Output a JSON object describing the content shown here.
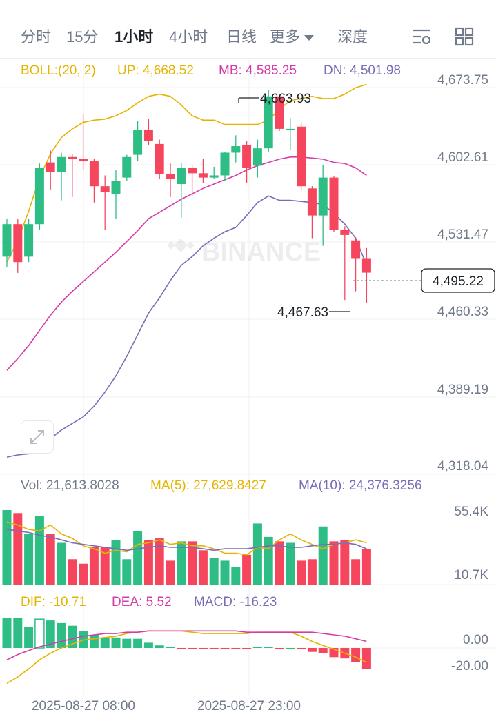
{
  "tabs": {
    "items": [
      {
        "label": "分时",
        "active": false
      },
      {
        "label": "15分",
        "active": false
      },
      {
        "label": "1小时",
        "active": true
      },
      {
        "label": "4小时",
        "active": false
      },
      {
        "label": "日线",
        "active": false
      },
      {
        "label": "更多",
        "active": false
      },
      {
        "label": "深度",
        "active": false
      }
    ]
  },
  "boll": {
    "label": "BOLL:(20, 2)",
    "up": "UP: 4,668.52",
    "mb": "MB: 4,585.25",
    "dn": "DN: 4,501.98"
  },
  "price_axis": [
    "4,673.75",
    "4,602.61",
    "4,531.47",
    "4,460.33",
    "4,389.19",
    "4,318.04"
  ],
  "current_price": "4,495.22",
  "high_marker": "4,663.93",
  "low_marker": "4,467.63",
  "watermark": "BINANCE",
  "volume": {
    "vol": "Vol: 21,613.8028",
    "ma5": "MA(5): 27,629.8427",
    "ma10": "MA(10): 24,376.3256",
    "axis": [
      "55.4K",
      "10.7K"
    ]
  },
  "macd": {
    "dif": "DIF: -10.71",
    "dea": "DEA: 5.52",
    "macd": "MACD: -16.23",
    "axis": [
      "0.00",
      "-20.00"
    ]
  },
  "time_axis": [
    "2025-08-27 08:00",
    "2025-08-27 23:00"
  ],
  "colors": {
    "up": "#2ebd85",
    "down": "#f6465d",
    "boll_up": "#e5b400",
    "boll_mb": "#d63ca8",
    "boll_dn": "#7b6bb8",
    "ma5": "#e5b400",
    "ma10": "#7b6bb8"
  },
  "chart_data": {
    "type": "candlestick",
    "price_range": [
      4318.04,
      4673.75
    ],
    "candles": [
      {
        "o": 4510,
        "h": 4545,
        "l": 4500,
        "c": 4540
      },
      {
        "o": 4540,
        "h": 4545,
        "l": 4495,
        "c": 4505
      },
      {
        "o": 4510,
        "h": 4545,
        "l": 4505,
        "c": 4540
      },
      {
        "o": 4540,
        "h": 4596,
        "l": 4535,
        "c": 4592
      },
      {
        "o": 4597,
        "h": 4608,
        "l": 4572,
        "c": 4588
      },
      {
        "o": 4588,
        "h": 4606,
        "l": 4562,
        "c": 4602
      },
      {
        "o": 4602,
        "h": 4605,
        "l": 4565,
        "c": 4600
      },
      {
        "o": 4600,
        "h": 4642,
        "l": 4590,
        "c": 4598
      },
      {
        "o": 4598,
        "h": 4600,
        "l": 4560,
        "c": 4575
      },
      {
        "o": 4575,
        "h": 4585,
        "l": 4535,
        "c": 4570
      },
      {
        "o": 4568,
        "h": 4590,
        "l": 4545,
        "c": 4580
      },
      {
        "o": 4583,
        "h": 4604,
        "l": 4580,
        "c": 4602
      },
      {
        "o": 4604,
        "h": 4635,
        "l": 4598,
        "c": 4627
      },
      {
        "o": 4627,
        "h": 4637,
        "l": 4613,
        "c": 4617
      },
      {
        "o": 4614,
        "h": 4618,
        "l": 4582,
        "c": 4586
      },
      {
        "o": 4586,
        "h": 4596,
        "l": 4565,
        "c": 4582
      },
      {
        "o": 4577,
        "h": 4597,
        "l": 4546,
        "c": 4592
      },
      {
        "o": 4592,
        "h": 4594,
        "l": 4566,
        "c": 4587
      },
      {
        "o": 4587,
        "h": 4600,
        "l": 4578,
        "c": 4583
      },
      {
        "o": 4583,
        "h": 4593,
        "l": 4582,
        "c": 4585
      },
      {
        "o": 4585,
        "h": 4607,
        "l": 4580,
        "c": 4606
      },
      {
        "o": 4606,
        "h": 4622,
        "l": 4597,
        "c": 4612
      },
      {
        "o": 4613,
        "h": 4617,
        "l": 4578,
        "c": 4592
      },
      {
        "o": 4594,
        "h": 4618,
        "l": 4583,
        "c": 4610
      },
      {
        "o": 4610,
        "h": 4664,
        "l": 4607,
        "c": 4658
      },
      {
        "o": 4658,
        "h": 4660,
        "l": 4626,
        "c": 4628
      },
      {
        "o": 4627,
        "h": 4638,
        "l": 4608,
        "c": 4628
      },
      {
        "o": 4630,
        "h": 4634,
        "l": 4571,
        "c": 4575
      },
      {
        "o": 4573,
        "h": 4575,
        "l": 4527,
        "c": 4548
      },
      {
        "o": 4548,
        "h": 4595,
        "l": 4520,
        "c": 4583
      },
      {
        "o": 4583,
        "h": 4584,
        "l": 4533,
        "c": 4535
      },
      {
        "o": 4535,
        "h": 4538,
        "l": 4470,
        "c": 4530
      },
      {
        "o": 4525,
        "h": 4528,
        "l": 4478,
        "c": 4508
      },
      {
        "o": 4508,
        "h": 4518,
        "l": 4467.63,
        "c": 4495.22
      }
    ],
    "boll_up": [
      4505,
      4525,
      4552,
      4583,
      4605,
      4620,
      4628,
      4634,
      4636,
      4637,
      4640,
      4645,
      4652,
      4658,
      4660,
      4658,
      4650,
      4640,
      4636,
      4636,
      4632,
      4632,
      4632,
      4632,
      4636,
      4646,
      4654,
      4656,
      4658,
      4656,
      4656,
      4660,
      4666,
      4669
    ],
    "boll_mb": [
      4405,
      4416,
      4428,
      4442,
      4456,
      4468,
      4478,
      4487,
      4496,
      4505,
      4514,
      4524,
      4534,
      4545,
      4551,
      4557,
      4563,
      4568,
      4573,
      4577,
      4581,
      4585,
      4590,
      4594,
      4597,
      4600,
      4602,
      4602,
      4601,
      4600,
      4597,
      4596,
      4592,
      4585
    ],
    "boll_dn": [
      4325,
      4327,
      4328,
      4329,
      4342,
      4350,
      4356,
      4362,
      4372,
      4385,
      4400,
      4418,
      4438,
      4458,
      4472,
      4488,
      4502,
      4510,
      4520,
      4527,
      4533,
      4537,
      4548,
      4560,
      4566,
      4562,
      4562,
      4561,
      4560,
      4558,
      4550,
      4540,
      4527,
      4502
    ],
    "volume": [
      50,
      48,
      34,
      46,
      34,
      28,
      17,
      14,
      25,
      25,
      30,
      17,
      36,
      30,
      31,
      16,
      29,
      29,
      23,
      18,
      16,
      12,
      20,
      41,
      32,
      29,
      28,
      16,
      17,
      39,
      29,
      30,
      17,
      24
    ],
    "vol_ma5": [
      42,
      40,
      37,
      36,
      40,
      34,
      31,
      26,
      24,
      21,
      23,
      22,
      27,
      28,
      30,
      27,
      28,
      26,
      26,
      24,
      21,
      21,
      20,
      25,
      24,
      30,
      34,
      30,
      27,
      24,
      27,
      28,
      30,
      28
    ],
    "vol_ma10": [
      37,
      36,
      35,
      33,
      32,
      30,
      28,
      27,
      26,
      25,
      24,
      23,
      24,
      25,
      26,
      25,
      25,
      25,
      24,
      23,
      24,
      24,
      24,
      25,
      26,
      26,
      25,
      25,
      26,
      27,
      27,
      28,
      27,
      24
    ],
    "macd_hist": [
      23,
      23,
      16,
      22,
      21,
      19,
      17,
      13,
      10,
      8,
      8,
      7,
      7,
      4,
      2,
      1,
      -1,
      -1,
      -1,
      -1,
      -1,
      -1,
      -1,
      1,
      1,
      -1,
      0,
      -1,
      -3,
      -4,
      -7,
      -8,
      -11,
      -16
    ],
    "dif": [
      -27,
      -22,
      -16,
      -9,
      -4,
      0,
      3,
      6,
      7,
      8,
      9,
      11,
      12,
      13,
      13,
      13,
      13,
      12,
      11,
      11,
      11,
      11,
      11,
      12,
      12,
      12,
      12,
      9,
      5,
      2,
      -1,
      -4,
      -7,
      -11
    ],
    "dea": [
      -9,
      -5,
      -2,
      1,
      3,
      5,
      7,
      9,
      10,
      11,
      11,
      12,
      12,
      13,
      13,
      13,
      13,
      13,
      13,
      13,
      13,
      13,
      12,
      12,
      12,
      12,
      12,
      12,
      12,
      11,
      10,
      9,
      7,
      5
    ]
  }
}
